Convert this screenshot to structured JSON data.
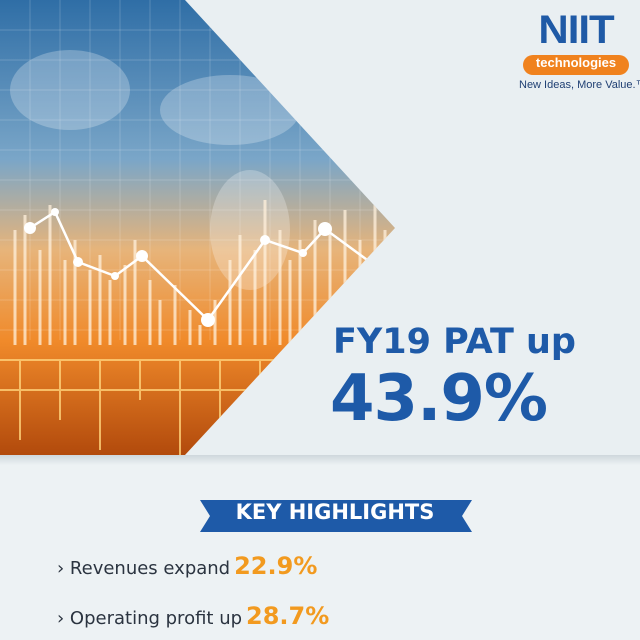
{
  "logo": {
    "name": "NIIT",
    "sub": "technologies",
    "tagline": "New Ideas, More Value.™"
  },
  "headline": {
    "title": "FY19 PAT up",
    "value": "43.9%"
  },
  "highlights": {
    "title": "KEY HIGHLIGHTS",
    "items": [
      {
        "label": "› Revenues expand",
        "value": "22.9%"
      },
      {
        "label": "› Operating profit up",
        "value": "28.7%"
      }
    ]
  }
}
